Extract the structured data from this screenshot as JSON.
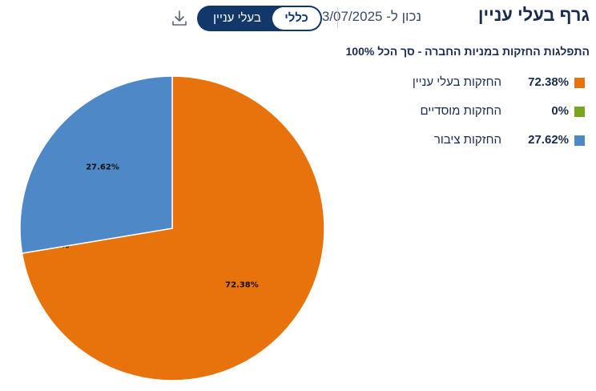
{
  "header": {
    "title": "גרף בעלי עניין",
    "date_text": "נכון ל- 13/07/2025",
    "toggle": {
      "active_label": "כללי",
      "inactive_label": "בעלי עניין"
    },
    "download_icon": "download-icon"
  },
  "chart_data": {
    "type": "pie",
    "title": "התפלגות החזקות במניות החברה - סך הכל 100%",
    "slices": [
      {
        "name": "החזקות בעלי עניין",
        "value": 72.38,
        "legend_value": "72.38%",
        "slice_label": "72.38%",
        "color": "#e8720c"
      },
      {
        "name": "החזקות מוסדיים",
        "value": 0,
        "legend_value": "0%",
        "slice_label": "0.00%",
        "color": "#7aa61f"
      },
      {
        "name": "החזקות ציבור",
        "value": 27.62,
        "legend_value": "27.62%",
        "slice_label": "27.62%",
        "color": "#4f88c6"
      }
    ],
    "legend_position": "top-right"
  }
}
